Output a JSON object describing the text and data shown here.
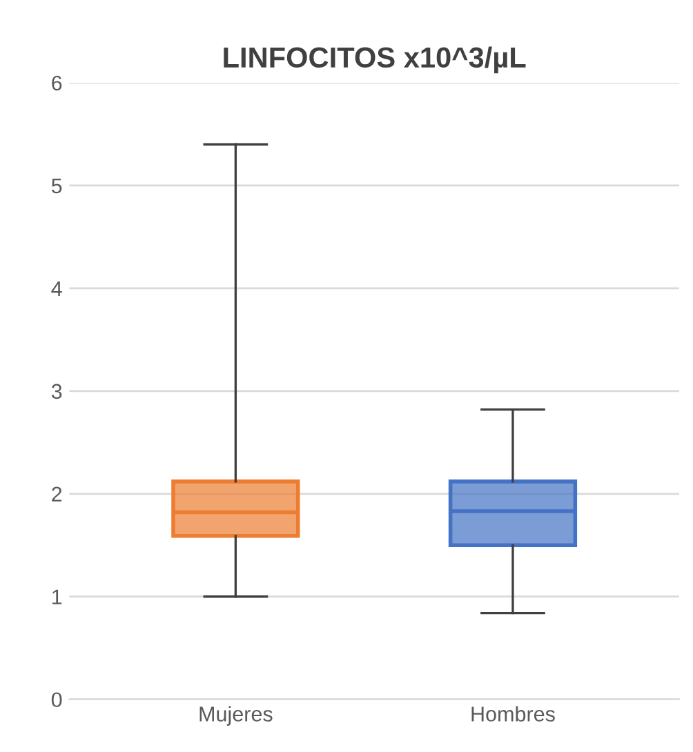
{
  "chart_data": {
    "type": "box",
    "title": "LINFOCITOS x10^3/µL",
    "categories": [
      "Mujeres",
      "Hombres"
    ],
    "colors": [
      "#ed7d31",
      "#4472c4"
    ],
    "boxes": [
      {
        "low": 1.0,
        "q1": 1.59,
        "median": 1.82,
        "q3": 2.12,
        "high": 5.4
      },
      {
        "low": 0.84,
        "q1": 1.5,
        "median": 1.83,
        "q3": 2.12,
        "high": 2.82
      }
    ],
    "ylim": [
      0,
      6
    ],
    "yticks": [
      0,
      1,
      2,
      3,
      4,
      5,
      6
    ],
    "grid": "y"
  }
}
